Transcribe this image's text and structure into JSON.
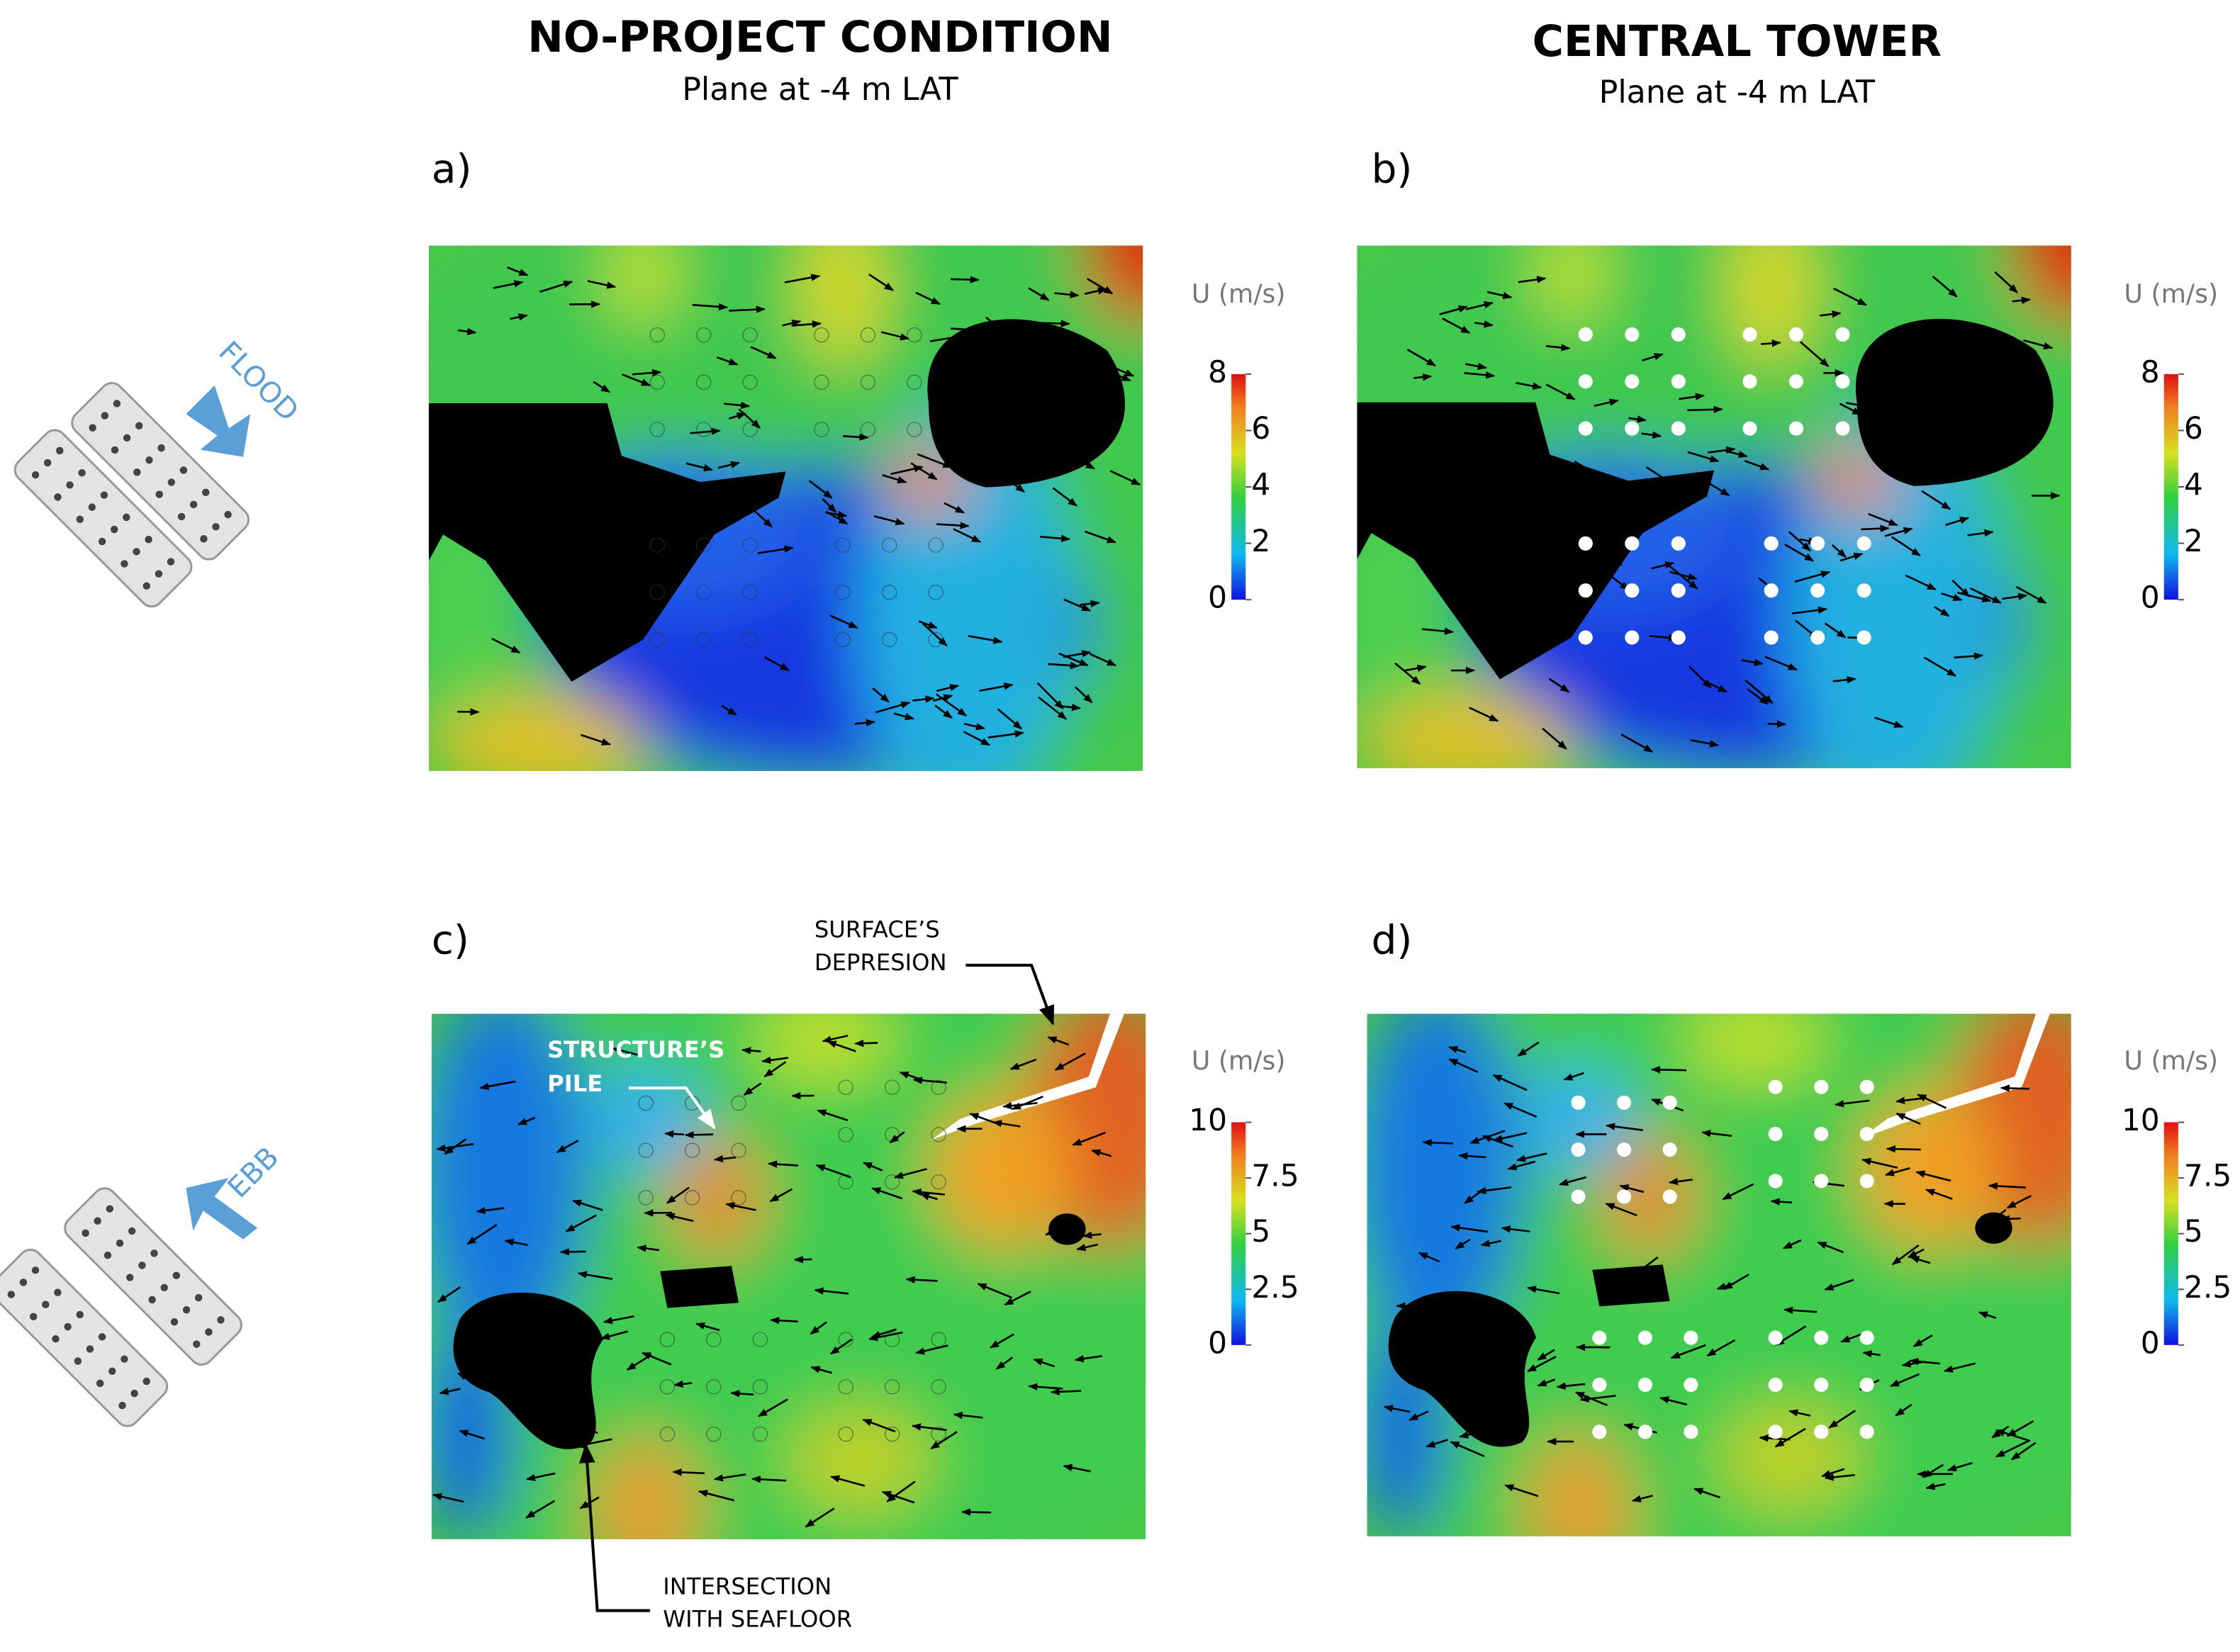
{
  "columns": [
    {
      "title": "NO-PROJECT CONDITION",
      "subtitle": "Plane at -4 m LAT"
    },
    {
      "title": "CENTRAL TOWER",
      "subtitle": "Plane at -4 m LAT"
    }
  ],
  "panels": [
    {
      "label": "a)",
      "colorbar": {
        "label": "U (m/s)",
        "range": [
          0,
          8
        ],
        "ticks": [
          0,
          2,
          4,
          6,
          8
        ]
      }
    },
    {
      "label": "b)",
      "colorbar": {
        "label": "U (m/s)",
        "range": [
          0,
          8
        ],
        "ticks": [
          0,
          2,
          4,
          6,
          8
        ]
      }
    },
    {
      "label": "c)",
      "colorbar": {
        "label": "U (m/s)",
        "range": [
          0,
          10
        ],
        "ticks": [
          0,
          2.5,
          5,
          7.5,
          10
        ]
      }
    },
    {
      "label": "d)",
      "colorbar": {
        "label": "U (m/s)",
        "range": [
          0,
          10
        ],
        "ticks": [
          0,
          2.5,
          5,
          7.5,
          10
        ]
      }
    }
  ],
  "tides": [
    {
      "label": "FLOOD"
    },
    {
      "label": "EBB"
    }
  ],
  "annotations": [
    {
      "lines": [
        "SURFACE’S",
        "DEPRESION"
      ]
    },
    {
      "lines": [
        "STRUCTURE’S",
        "PILE"
      ]
    },
    {
      "lines": [
        "INTERSECTION",
        "WITH SEAFLOOR"
      ]
    }
  ]
}
